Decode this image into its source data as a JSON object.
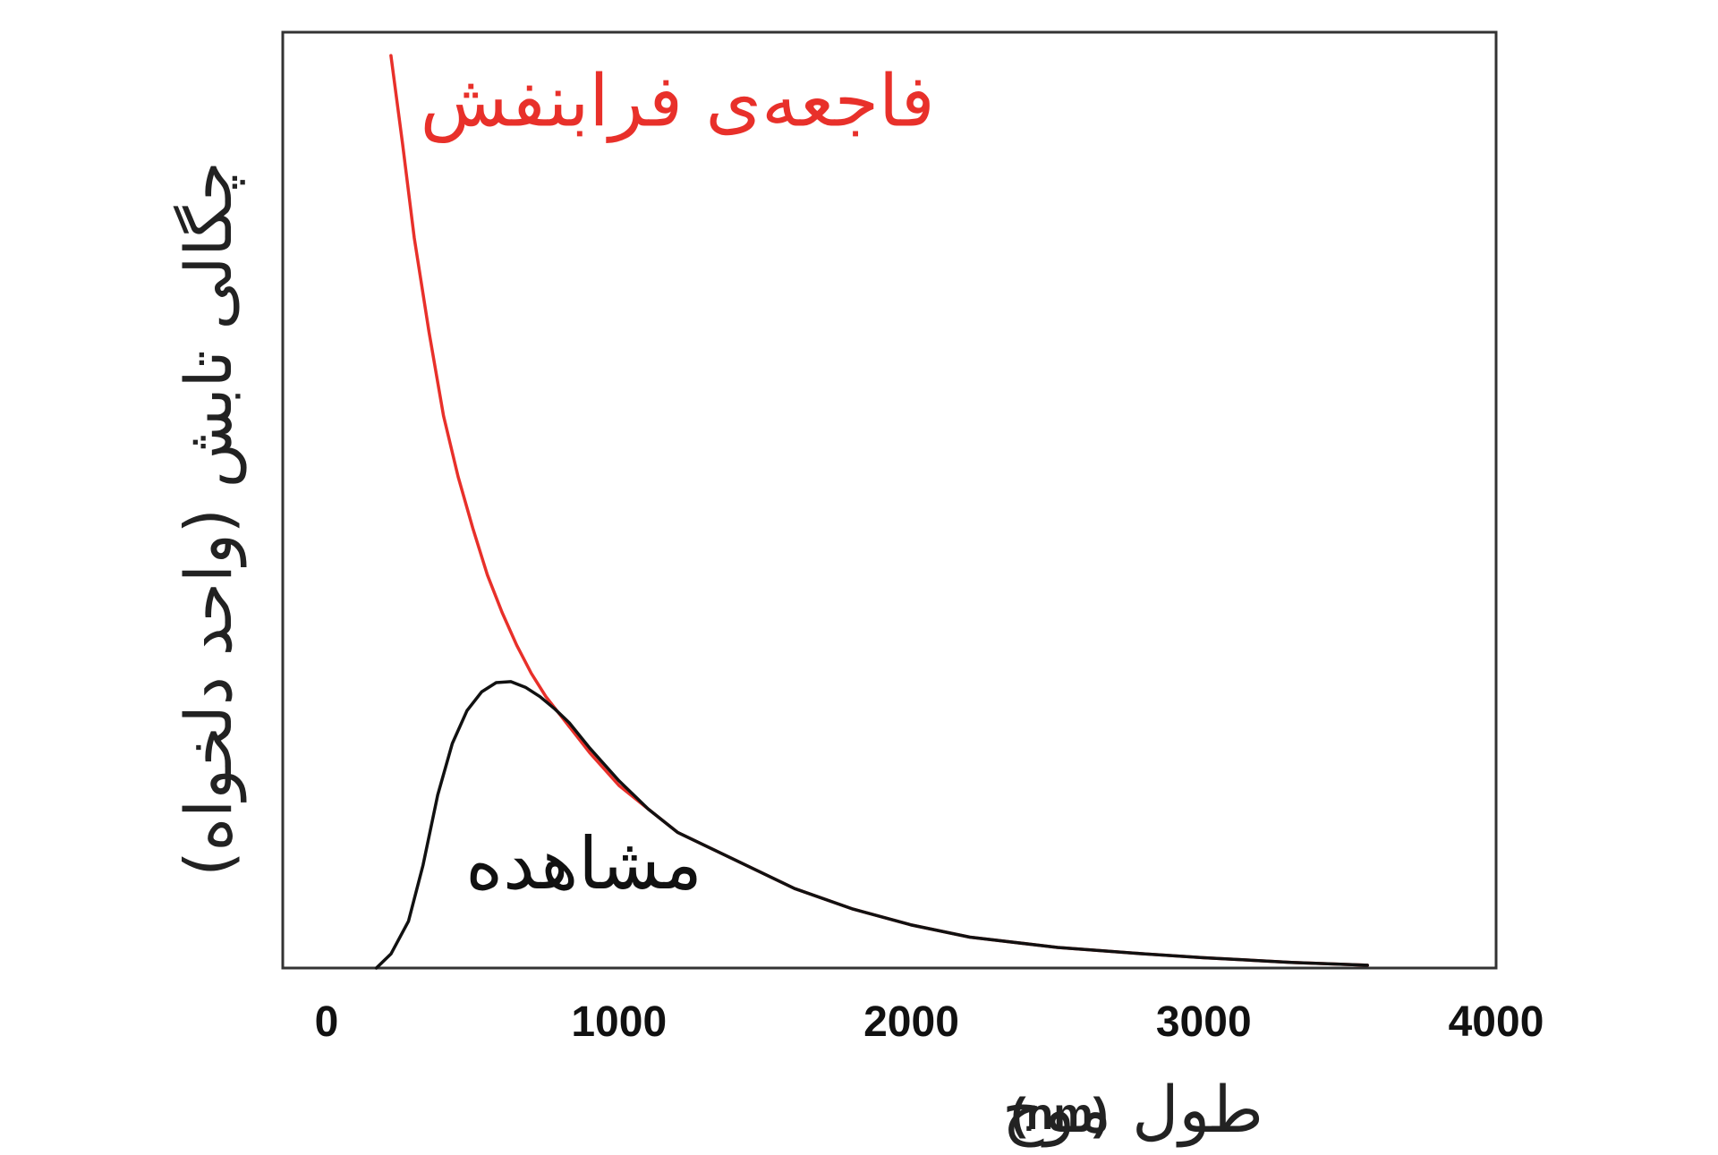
{
  "chart_data": {
    "type": "line",
    "title": "",
    "xlabel": "طول موج",
    "xlabel_unit": "(nm)",
    "ylabel": "چگالی تابش (واحد دلخواه)",
    "xlim": [
      -150,
      4000
    ],
    "ylim": [
      0,
      100
    ],
    "x_ticks": [
      0,
      1000,
      2000,
      3000,
      4000
    ],
    "y_ticks_shown": false,
    "grid": false,
    "legend": "none",
    "series": [
      {
        "color": "#e8302a",
        "x": [
          220,
          260,
          300,
          350,
          400,
          450,
          500,
          550,
          600,
          650,
          700,
          750,
          800,
          900,
          1000,
          1100,
          1200,
          1400,
          1600,
          1800,
          2000,
          2200,
          2500,
          2800,
          3000,
          3300,
          3560
        ],
        "y": [
          97.5,
          88,
          78,
          68,
          59,
          52.5,
          47,
          42,
          38,
          34.5,
          31.5,
          29,
          27,
          23,
          19.5,
          17,
          14.5,
          11.5,
          8.5,
          6.3,
          4.6,
          3.3,
          2.2,
          1.5,
          1.1,
          0.6,
          0.3
        ]
      },
      {
        "color": "#111111",
        "x": [
          170,
          220,
          280,
          330,
          380,
          430,
          480,
          530,
          580,
          630,
          680,
          730,
          780,
          830,
          900,
          1000,
          1100,
          1200,
          1400,
          1600,
          1800,
          2000,
          2200,
          2500,
          2800,
          3000,
          3300,
          3560
        ],
        "y": [
          0,
          1.5,
          5,
          11,
          18.5,
          24,
          27.5,
          29.5,
          30.5,
          30.6,
          30,
          29,
          27.7,
          26.2,
          23.5,
          20,
          17,
          14.5,
          11.5,
          8.5,
          6.3,
          4.6,
          3.3,
          2.2,
          1.5,
          1.1,
          0.6,
          0.3
        ]
      }
    ],
    "annotations": [
      {
        "text": "فاجعه‌ی فرابنفش",
        "x": 1200,
        "y": 90,
        "color": "#e8302a"
      },
      {
        "text": "مشاهده",
        "x": 880,
        "y": 8.5,
        "color": "#111111"
      }
    ]
  }
}
